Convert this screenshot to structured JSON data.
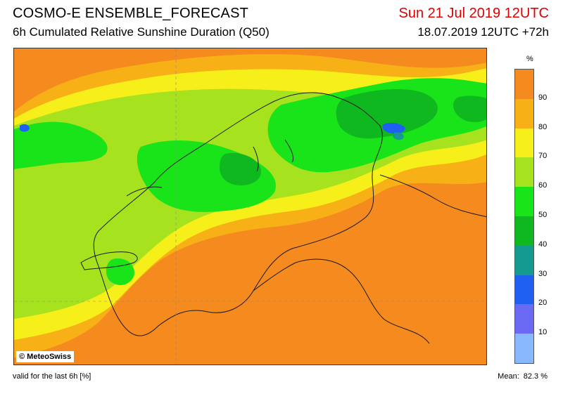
{
  "header": {
    "title": "COSMO-E ENSEMBLE_FORECAST",
    "subtitle": "6h Cumulated Relative Sunshine Duration (Q50)",
    "valid_time": "Sun 21 Jul 2019 12UTC",
    "run_time": "18.07.2019 12UTC +72h"
  },
  "map": {
    "copyright": "© MeteoSwiss",
    "colors": {
      "background": "#f58a1e",
      "yellow_orange": "#f7b117",
      "yellow": "#f7ef1a",
      "light_green": "#a7e21f",
      "green": "#19e319",
      "dark_green": "#10b820",
      "teal": "#159a90",
      "blue": "#1f5ff2"
    }
  },
  "legend": {
    "unit": "%",
    "ticks": [
      "10",
      "20",
      "30",
      "40",
      "50",
      "60",
      "70",
      "80",
      "90"
    ],
    "colors": [
      "#8ab8ff",
      "#6a6af5",
      "#1f5ff2",
      "#159a90",
      "#10b820",
      "#19e319",
      "#a7e21f",
      "#f7ef1a",
      "#f7b117",
      "#f58a1e"
    ]
  },
  "footer": {
    "note": "valid for the last 6h [%]",
    "mean_label": "Mean:",
    "mean_value": "82.3 %"
  }
}
